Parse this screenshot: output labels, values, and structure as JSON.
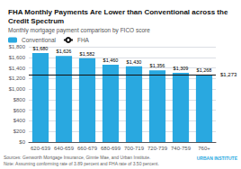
{
  "chart_data": {
    "type": "bar",
    "title": "FHA Monthly Payments Are Lower than Conventional across the Credit Spectrum",
    "subtitle": "Monthly mortgage payment comparison by FICO score",
    "categories": [
      "620-639",
      "640-659",
      "660-679",
      "680-699",
      "700-719",
      "720-739",
      "740-759",
      "760+"
    ],
    "series": [
      {
        "name": "Conventional",
        "type": "bar",
        "color": "#29a8e0",
        "values": [
          1680,
          1626,
          1582,
          1460,
          1430,
          1356,
          1309,
          1268
        ],
        "value_labels": [
          "$1,680",
          "$1,626",
          "$1,582",
          "$1,460",
          "$1,430",
          "$1,356",
          "$1,309",
          "$1,268"
        ]
      },
      {
        "name": "FHA",
        "type": "hline",
        "color": "#111111",
        "value": 1273,
        "value_label": "$1,273"
      }
    ],
    "ylim": [
      0,
      1800
    ],
    "yticks": [
      {
        "value": 0,
        "label": "$0"
      },
      {
        "value": 200,
        "label": "$200"
      },
      {
        "value": 400,
        "label": "$400"
      },
      {
        "value": 600,
        "label": "$600"
      },
      {
        "value": 800,
        "label": "$800"
      },
      {
        "value": 1000,
        "label": "$1,000"
      },
      {
        "value": 1200,
        "label": "$1,200"
      },
      {
        "value": 1400,
        "label": "$1,400"
      },
      {
        "value": 1600,
        "label": "$1,600"
      },
      {
        "value": 1800,
        "label": "$1,800"
      }
    ],
    "grid": true,
    "data_labels": true,
    "legend": "upper left",
    "annotations": [
      {
        "text": "Sources: Genworth Mortgage Insurance, Ginnie Mae, and Urban Institute.\nNote: Assuming conforming rate of 3.89 percent and FHA rate of 3.50 percent."
      },
      {
        "text": "URBAN INSTITUTE",
        "color": "#29a8e0"
      }
    ]
  }
}
